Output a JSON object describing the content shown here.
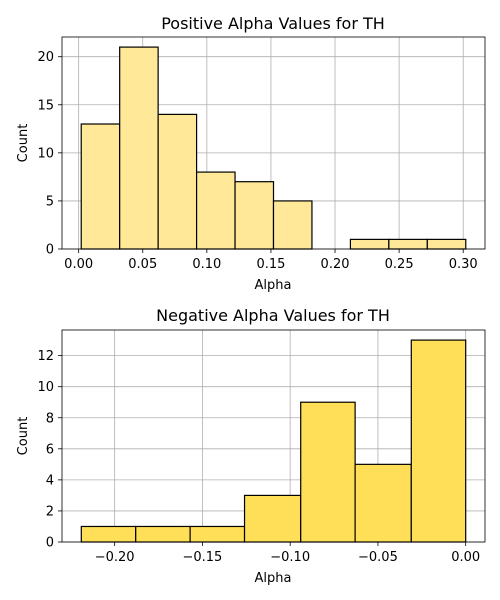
{
  "chart_data": [
    {
      "type": "bar",
      "title": "Positive Alpha Values for TH",
      "xlabel": "Alpha",
      "ylabel": "Count",
      "bar_color": "#ffe999",
      "bins": [
        {
          "x0": 0.002,
          "x1": 0.032,
          "count": 13
        },
        {
          "x0": 0.032,
          "x1": 0.062,
          "count": 21
        },
        {
          "x0": 0.062,
          "x1": 0.092,
          "count": 14
        },
        {
          "x0": 0.092,
          "x1": 0.122,
          "count": 8
        },
        {
          "x0": 0.122,
          "x1": 0.152,
          "count": 7
        },
        {
          "x0": 0.152,
          "x1": 0.182,
          "count": 5
        },
        {
          "x0": 0.182,
          "x1": 0.212,
          "count": 0
        },
        {
          "x0": 0.212,
          "x1": 0.242,
          "count": 1
        },
        {
          "x0": 0.242,
          "x1": 0.272,
          "count": 1
        },
        {
          "x0": 0.272,
          "x1": 0.302,
          "count": 1
        }
      ],
      "xlim": [
        -0.013,
        0.317
      ],
      "ylim": [
        0,
        22.05
      ],
      "xticks": [
        0.0,
        0.05,
        0.1,
        0.15,
        0.2,
        0.25,
        0.3
      ],
      "xtick_labels": [
        "0.00",
        "0.05",
        "0.10",
        "0.15",
        "0.20",
        "0.25",
        "0.30"
      ],
      "yticks": [
        0,
        5,
        10,
        15,
        20
      ],
      "ytick_labels": [
        "0",
        "5",
        "10",
        "15",
        "20"
      ],
      "grid": true
    },
    {
      "type": "bar",
      "title": "Negative Alpha Values for TH",
      "xlabel": "Alpha",
      "ylabel": "Count",
      "bar_color": "#ffdf57",
      "bins": [
        {
          "x0": -0.219,
          "x1": -0.188,
          "count": 1
        },
        {
          "x0": -0.188,
          "x1": -0.157,
          "count": 1
        },
        {
          "x0": -0.157,
          "x1": -0.126,
          "count": 1
        },
        {
          "x0": -0.126,
          "x1": -0.094,
          "count": 3
        },
        {
          "x0": -0.094,
          "x1": -0.063,
          "count": 9
        },
        {
          "x0": -0.063,
          "x1": -0.031,
          "count": 5
        },
        {
          "x0": -0.031,
          "x1": 0.0,
          "count": 13
        }
      ],
      "xlim": [
        -0.23,
        0.011
      ],
      "ylim": [
        0,
        13.65
      ],
      "xticks": [
        -0.2,
        -0.15,
        -0.1,
        -0.05,
        0.0
      ],
      "xtick_labels": [
        "−0.20",
        "−0.15",
        "−0.10",
        "−0.05",
        "0.00"
      ],
      "yticks": [
        0,
        2,
        4,
        6,
        8,
        10,
        12
      ],
      "ytick_labels": [
        "0",
        "2",
        "4",
        "6",
        "8",
        "10",
        "12"
      ],
      "grid": true
    }
  ]
}
